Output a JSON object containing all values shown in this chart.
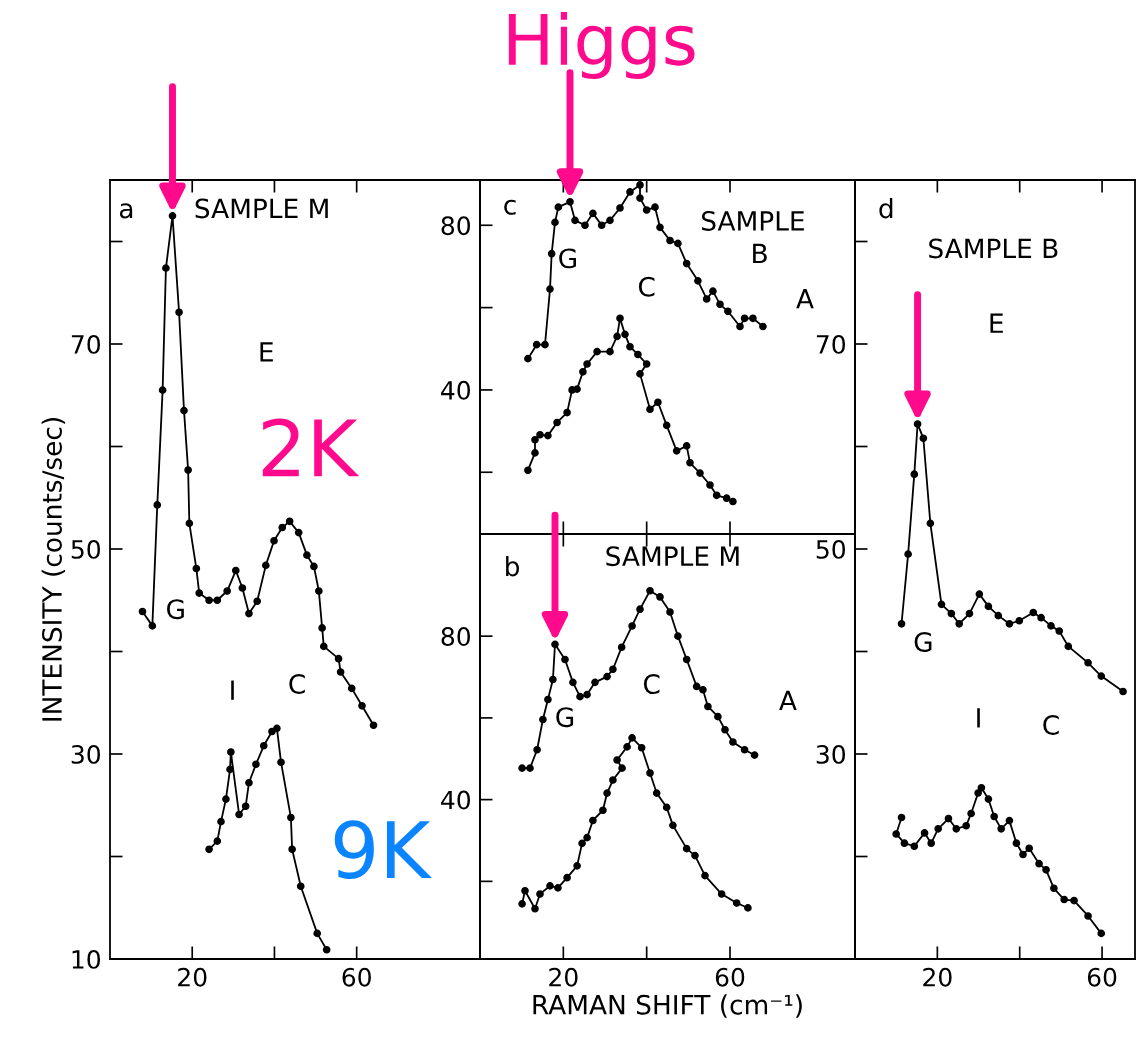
{
  "chart_data": [
    {
      "type": "line",
      "ylabel": "INTENSITY (counts/sec)",
      "xlim": [
        0,
        90
      ],
      "ylim": [
        10,
        86
      ],
      "xticks": [
        20,
        {
          "value": 40,
          "label": null
        },
        60
      ],
      "yticks": [
        10,
        {
          "value": 20,
          "label": null
        },
        30,
        {
          "value": 40,
          "label": null
        },
        50,
        {
          "value": 60,
          "label": null
        },
        70,
        {
          "value": 80,
          "label": null
        }
      ],
      "marker": "circle",
      "line_style": "solid",
      "grid": false,
      "legend": false,
      "series": [
        {
          "color": "#000000",
          "x": [
            7.9,
            10.3,
            11.5,
            12.8,
            13.6,
            15.2,
            16.8,
            18,
            19,
            19.3,
            21,
            21.7,
            24.1,
            26.1,
            28.5,
            30.6,
            32.2,
            33.8,
            35.8,
            37.9,
            39.9,
            41.9,
            43.7,
            45.9,
            47.9,
            49.6,
            50.8,
            51.6,
            52,
            55.6,
            56.1,
            58.8,
            61.3,
            64.1
          ],
          "values": [
            43.9,
            42.5,
            54.3,
            65.5,
            77.4,
            82.5,
            73.1,
            63.5,
            57.7,
            52.5,
            48.1,
            45.7,
            45,
            45,
            45.9,
            47.9,
            46.2,
            43.7,
            44.9,
            48.4,
            50.8,
            52.1,
            52.7,
            51.6,
            49.4,
            48.3,
            45.9,
            42.3,
            40.5,
            39.3,
            38,
            36.4,
            34.7,
            32.8
          ]
        },
        {
          "color": "#000000",
          "x": [
            24.1,
            26.1,
            27,
            28.2,
            29.2,
            29.4,
            31.4,
            33,
            33.8,
            35.5,
            37.4,
            39.4,
            40.6,
            41.6,
            44,
            44.3,
            46.4,
            50.4,
            52.7
          ],
          "values": [
            20.7,
            21.5,
            23.4,
            25.6,
            28.5,
            30.2,
            24.1,
            24.9,
            27.2,
            29,
            30.8,
            32.2,
            32.5,
            29.2,
            23.8,
            20.7,
            17.1,
            12.5,
            10.9
          ]
        }
      ],
      "annotations": [
        "a",
        "SAMPLE M",
        "E",
        "G",
        "I",
        "C",
        "2K",
        "9K"
      ]
    },
    {
      "type": "line",
      "xlim": [
        0,
        90
      ],
      "ylim": [
        5,
        91
      ],
      "xticks": [
        {
          "value": 20,
          "label": null
        },
        {
          "value": 40,
          "label": null
        },
        {
          "value": 60,
          "label": null
        }
      ],
      "yticks": [
        {
          "value": 20,
          "label": null
        },
        40,
        {
          "value": 60,
          "label": null
        },
        80
      ],
      "tick_labels": "y",
      "marker": "circle",
      "line_style": "solid",
      "grid": false,
      "legend": false,
      "series": [
        {
          "color": "#000000",
          "x": [
            11.5,
            13.6,
            15.6,
            16.8,
            17.2,
            18,
            18.8,
            21.6,
            22.8,
            25.2,
            27.1,
            29.2,
            31.2,
            33.6,
            36,
            38.4,
            38.4,
            40,
            42,
            43.2,
            45.6,
            47.5,
            49.6,
            52.3,
            54.4,
            55.9,
            57.6,
            59.5,
            62.4,
            63.5,
            65.5,
            67.9
          ],
          "values": [
            47.6,
            51,
            51,
            64.5,
            73.1,
            80.7,
            84.4,
            85.7,
            81.2,
            80,
            82.9,
            80,
            81.2,
            84.2,
            88.1,
            89.8,
            86.6,
            83.7,
            84.4,
            79.5,
            76.3,
            75.6,
            70.7,
            66.5,
            62.1,
            64,
            60.8,
            59.1,
            55.4,
            57.4,
            57.4,
            55.4
          ]
        },
        {
          "color": "#000000",
          "x": [
            11.5,
            13.2,
            13.2,
            14.4,
            16.3,
            18.5,
            20.9,
            22.1,
            23.3,
            24.7,
            25.7,
            28.1,
            31.2,
            32.9,
            33.6,
            34.8,
            36,
            37.9,
            40,
            38.4,
            40.8,
            42.7,
            44.8,
            47.2,
            49.6,
            50.4,
            52.8,
            55.2,
            56.8,
            59.2,
            60.7
          ],
          "values": [
            20.5,
            24.7,
            27.9,
            29.1,
            28.9,
            32.1,
            34.5,
            40,
            40.2,
            44.4,
            46.3,
            49.3,
            49.3,
            53,
            57.4,
            53.5,
            50.5,
            48.6,
            46.3,
            43.9,
            35.3,
            37,
            31.4,
            25.2,
            26.4,
            22.3,
            19.8,
            16.9,
            14.4,
            13.7,
            12.9
          ]
        }
      ],
      "annotations": [
        "Higgs",
        "c",
        "SAMPLE",
        "B",
        "A",
        "G",
        "C"
      ]
    },
    {
      "type": "line",
      "xlabel": "RAMAN SHIFT (cm⁻¹)",
      "xlim": [
        0,
        90
      ],
      "ylim": [
        1,
        105
      ],
      "xticks": [
        20,
        {
          "value": 40,
          "label": null
        },
        60
      ],
      "yticks": [
        {
          "value": 20,
          "label": null
        },
        40,
        {
          "value": 60,
          "label": null
        },
        80
      ],
      "marker": "circle",
      "line_style": "solid",
      "grid": false,
      "legend": false,
      "series": [
        {
          "color": "#000000",
          "x": [
            10.1,
            12,
            13.7,
            15.1,
            16.3,
            17.5,
            18,
            20.4,
            22.3,
            24,
            25.7,
            27.6,
            30.5,
            31.9,
            34,
            36.5,
            38.4,
            40.8,
            43.2,
            45.6,
            47.5,
            49.6,
            52,
            53.5,
            54.7,
            57.1,
            58.8,
            60.7,
            63.5,
            65.9
          ],
          "values": [
            47.7,
            47.7,
            52.2,
            59.6,
            64.5,
            69.4,
            78,
            74.3,
            68.7,
            65.2,
            65.7,
            68.7,
            70.1,
            71.9,
            77.3,
            82.5,
            86.6,
            91.1,
            89.6,
            85.9,
            80,
            74.3,
            67.7,
            66.9,
            62.8,
            60.3,
            57.1,
            54.1,
            52.2,
            50.9
          ]
        },
        {
          "color": "#000000",
          "x": [
            10.1,
            10.8,
            13.2,
            14.4,
            16.8,
            18.7,
            20.9,
            23.3,
            24.5,
            25.7,
            27.1,
            29.5,
            30.5,
            31.9,
            34.1,
            32.9,
            35.3,
            36.5,
            38.8,
            40.8,
            42.4,
            44.8,
            46.3,
            49.6,
            51.6,
            54,
            58,
            61.6,
            64.3
          ],
          "values": [
            14.5,
            17.7,
            13.3,
            16.9,
            18.9,
            18.4,
            20.9,
            23.8,
            29.3,
            30.7,
            34.9,
            37.4,
            41.6,
            44.8,
            47.7,
            49.7,
            52.9,
            55.1,
            52.7,
            46.5,
            41.6,
            38.1,
            33.7,
            28,
            26.3,
            21.4,
            16.9,
            14.7,
            13.5
          ]
        }
      ],
      "annotations": [
        "b",
        "SAMPLE M",
        "A",
        "G",
        "C"
      ]
    },
    {
      "type": "line",
      "xlim": [
        0,
        68
      ],
      "ylim": [
        10,
        86
      ],
      "xticks": [
        20,
        {
          "value": 40,
          "label": null
        },
        60
      ],
      "yticks": [
        {
          "value": 20,
          "label": null
        },
        30,
        {
          "value": 40,
          "label": null
        },
        50,
        {
          "value": 60,
          "label": null
        },
        70,
        {
          "value": 80,
          "label": null
        }
      ],
      "marker": "circle",
      "line_style": "solid",
      "grid": false,
      "legend": false,
      "series": [
        {
          "color": "#000000",
          "x": [
            11.3,
            12.9,
            14.4,
            15.2,
            16.6,
            18.3,
            21,
            23.4,
            25.3,
            27.8,
            30.2,
            32.4,
            34.8,
            37.5,
            39.9,
            43.3,
            45.2,
            47.6,
            49.6,
            51.8,
            56.6,
            59.8,
            65.1
          ],
          "values": [
            42.7,
            49.5,
            57.3,
            62.2,
            60.8,
            52.5,
            44.6,
            43.7,
            42.7,
            43.7,
            45.6,
            44.4,
            43.5,
            42.7,
            43,
            43.8,
            43.3,
            42.5,
            42,
            40.5,
            38.9,
            37.6,
            36.1
          ]
        },
        {
          "color": "#000000",
          "x": [
            11.3,
            10,
            12,
            14.4,
            16.9,
            18.5,
            20.2,
            22.7,
            24.6,
            27,
            28.2,
            29.9,
            30.7,
            32.4,
            33.8,
            35.5,
            37.5,
            39.2,
            40.8,
            42.3,
            44.7,
            46.4,
            48.3,
            50.8,
            53.2,
            56.6,
            59.8
          ],
          "values": [
            23.8,
            22.2,
            21.3,
            21,
            22.3,
            21.3,
            22.7,
            23.7,
            22.7,
            23,
            24.2,
            26.2,
            26.7,
            25.6,
            23.9,
            22.7,
            23.5,
            21.3,
            20.2,
            20.8,
            19.3,
            18.7,
            16.9,
            15.8,
            15.7,
            14.2,
            12.5
          ]
        }
      ],
      "annotations": [
        "d",
        "SAMPLE B",
        "E",
        "G",
        "I",
        "C"
      ]
    }
  ]
}
